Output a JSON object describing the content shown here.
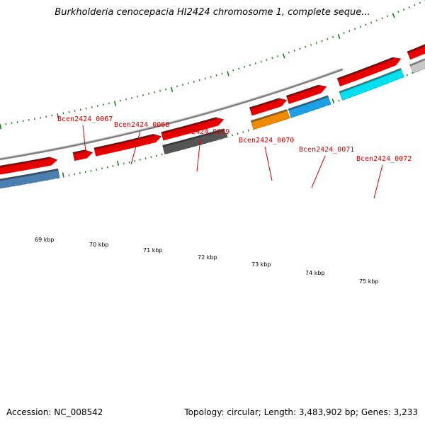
{
  "title": "Burkholderia cenocepacia HI2424 chromosome 1, complete seque...",
  "footer": {
    "accession": "Accession: NC_008542",
    "stats": "Topology: circular; Length: 3,483,902 bp; Genes: 3,233"
  },
  "map": {
    "colors": {
      "backbone": "#808080",
      "forward_red": "#e60000",
      "tick": "#1a7a1a",
      "label": "#cc0000",
      "steelblue": "#4a7fb0",
      "gray": "#555555",
      "orange": "#f08a00",
      "skyblue": "#1ea0e6",
      "cyan": "#00e0f0",
      "lightgray": "#c8c8c8"
    },
    "position_labels": [
      "69 kbp",
      "70 kbp",
      "71 kbp",
      "72 kbp",
      "73 kbp",
      "74 kbp",
      "75 kbp"
    ],
    "gene_labels": [
      "Bcen2424_0067",
      "Bcen2424_0068",
      "Bcen2424_0069",
      "Bcen2424_0070",
      "Bcen2424_0071",
      "Bcen2424_0072"
    ]
  }
}
